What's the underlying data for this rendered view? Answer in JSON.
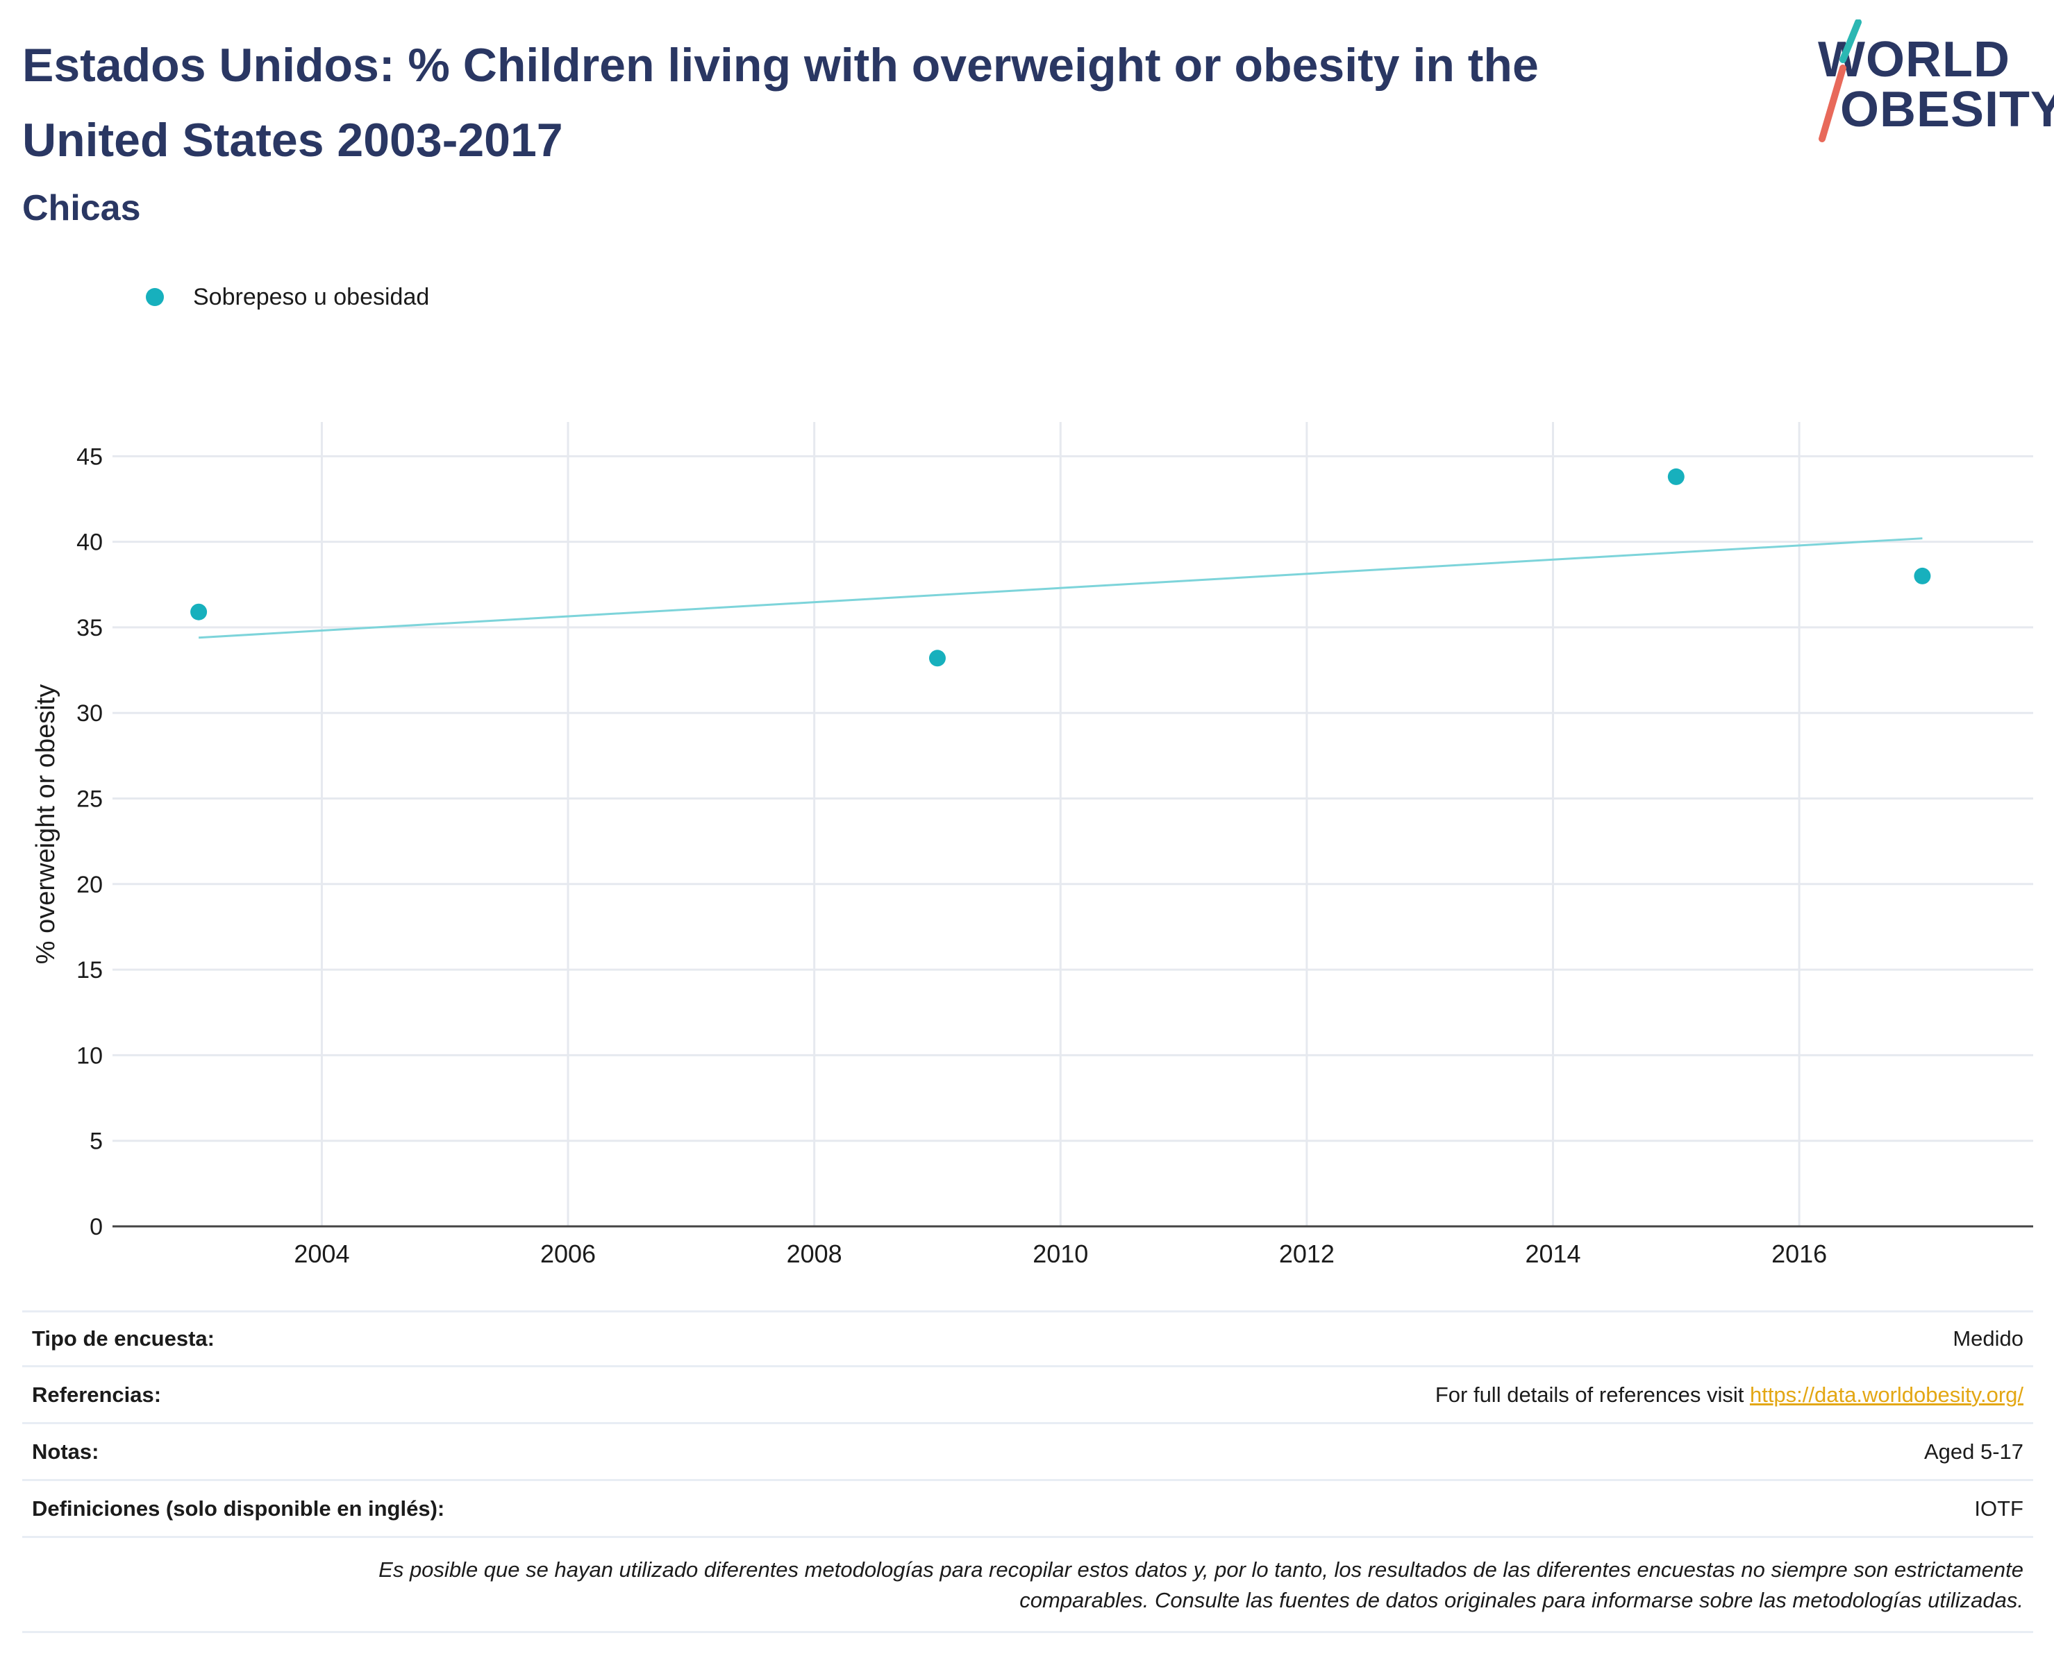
{
  "title": "Estados Unidos: % Children living with overweight or obesity in the United States 2003-2017",
  "subtitle": "Chicas",
  "logo": {
    "line1": "WORLD",
    "line2": "OBESITY"
  },
  "colors": {
    "accent": "#17b0bd",
    "trend": "#7dd4da",
    "title": "#2a3763",
    "link": "#e3a714",
    "logo_slash_top": "#2bb7b3",
    "logo_slash_bottom": "#e8695a"
  },
  "legend": [
    {
      "label": "Sobrepeso u obesidad"
    }
  ],
  "chart_data": {
    "type": "scatter",
    "xlabel": "",
    "ylabel": "% overweight or obesity",
    "xlim": [
      2002.3,
      2017.9
    ],
    "ylim": [
      0,
      47
    ],
    "x_ticks": [
      2004,
      2006,
      2008,
      2010,
      2012,
      2014,
      2016
    ],
    "y_ticks": [
      0,
      5,
      10,
      15,
      20,
      25,
      30,
      35,
      40,
      45
    ],
    "grid": true,
    "legend_position": "top-left",
    "series": [
      {
        "name": "Sobrepeso u obesidad",
        "x": [
          2003,
          2009,
          2015,
          2017
        ],
        "y": [
          35.9,
          33.2,
          43.8,
          38.0
        ]
      }
    ],
    "trendline": {
      "x": [
        2003,
        2017
      ],
      "y": [
        34.4,
        40.2
      ]
    }
  },
  "table": [
    {
      "key": "Tipo de encuesta:",
      "value": "Medido"
    },
    {
      "key": "Referencias:",
      "value": "For full details of references visit ",
      "link": "https://data.worldobesity.org/"
    },
    {
      "key": "Notas:",
      "value": "Aged 5-17"
    },
    {
      "key": "Definiciones (solo disponible en inglés):",
      "value": "IOTF"
    }
  ],
  "disclaimer_line1": "Es posible que se hayan utilizado diferentes metodologías para recopilar estos datos y, por lo tanto, los resultados de las diferentes encuestas no siempre son estrictamente",
  "disclaimer_line2": "comparables. Consulte las fuentes de datos originales para informarse sobre las metodologías utilizadas."
}
